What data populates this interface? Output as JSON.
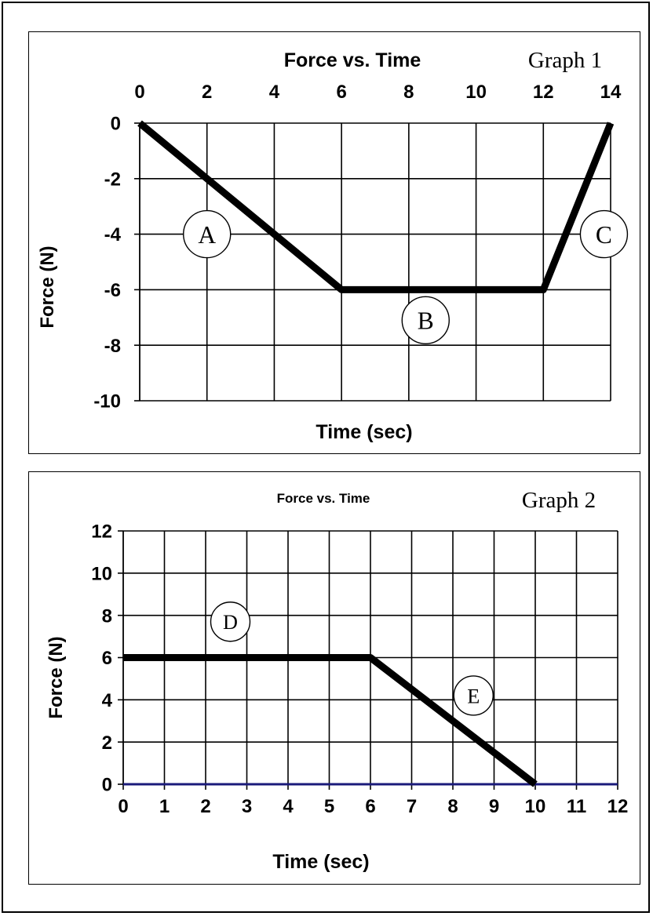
{
  "chart_data": [
    {
      "type": "line",
      "title": "Force vs. Time",
      "graph_label": "Graph 1",
      "xlabel": "Time (sec)",
      "ylabel": "Force (N)",
      "xlim": [
        0,
        14
      ],
      "ylim": [
        -10,
        0
      ],
      "x_ticks": [
        "0",
        "2",
        "4",
        "6",
        "8",
        "10",
        "12",
        "14"
      ],
      "y_ticks": [
        "0",
        "-2",
        "-4",
        "-6",
        "-8",
        "-10"
      ],
      "x_axis_position": "top",
      "grid": true,
      "series": [
        {
          "x": [
            0,
            6,
            12,
            14
          ],
          "y": [
            0,
            -6,
            -6,
            0
          ],
          "color": "#000000"
        }
      ],
      "annotations": [
        {
          "text": "A",
          "x": 2,
          "y": -4
        },
        {
          "text": "B",
          "x": 8.5,
          "y": -7.1
        },
        {
          "text": "C",
          "x": 13.8,
          "y": -4
        }
      ]
    },
    {
      "type": "line",
      "title": "Force vs. Time",
      "graph_label": "Graph 2",
      "xlabel": "Time (sec)",
      "ylabel": "Force (N)",
      "xlim": [
        0,
        12
      ],
      "ylim": [
        0,
        12
      ],
      "x_ticks": [
        "0",
        "1",
        "2",
        "3",
        "4",
        "5",
        "6",
        "7",
        "8",
        "9",
        "10",
        "11",
        "12"
      ],
      "y_ticks": [
        "12",
        "10",
        "8",
        "6",
        "4",
        "2",
        "0"
      ],
      "x_axis_position": "bottom",
      "grid": true,
      "zero_line_color": "#1a1a7a",
      "series": [
        {
          "x": [
            0,
            6,
            10
          ],
          "y": [
            6,
            6,
            0
          ],
          "color": "#000000"
        }
      ],
      "annotations": [
        {
          "text": "D",
          "x": 2.6,
          "y": 7.7
        },
        {
          "text": "E",
          "x": 8.5,
          "y": 4.2
        }
      ]
    }
  ]
}
